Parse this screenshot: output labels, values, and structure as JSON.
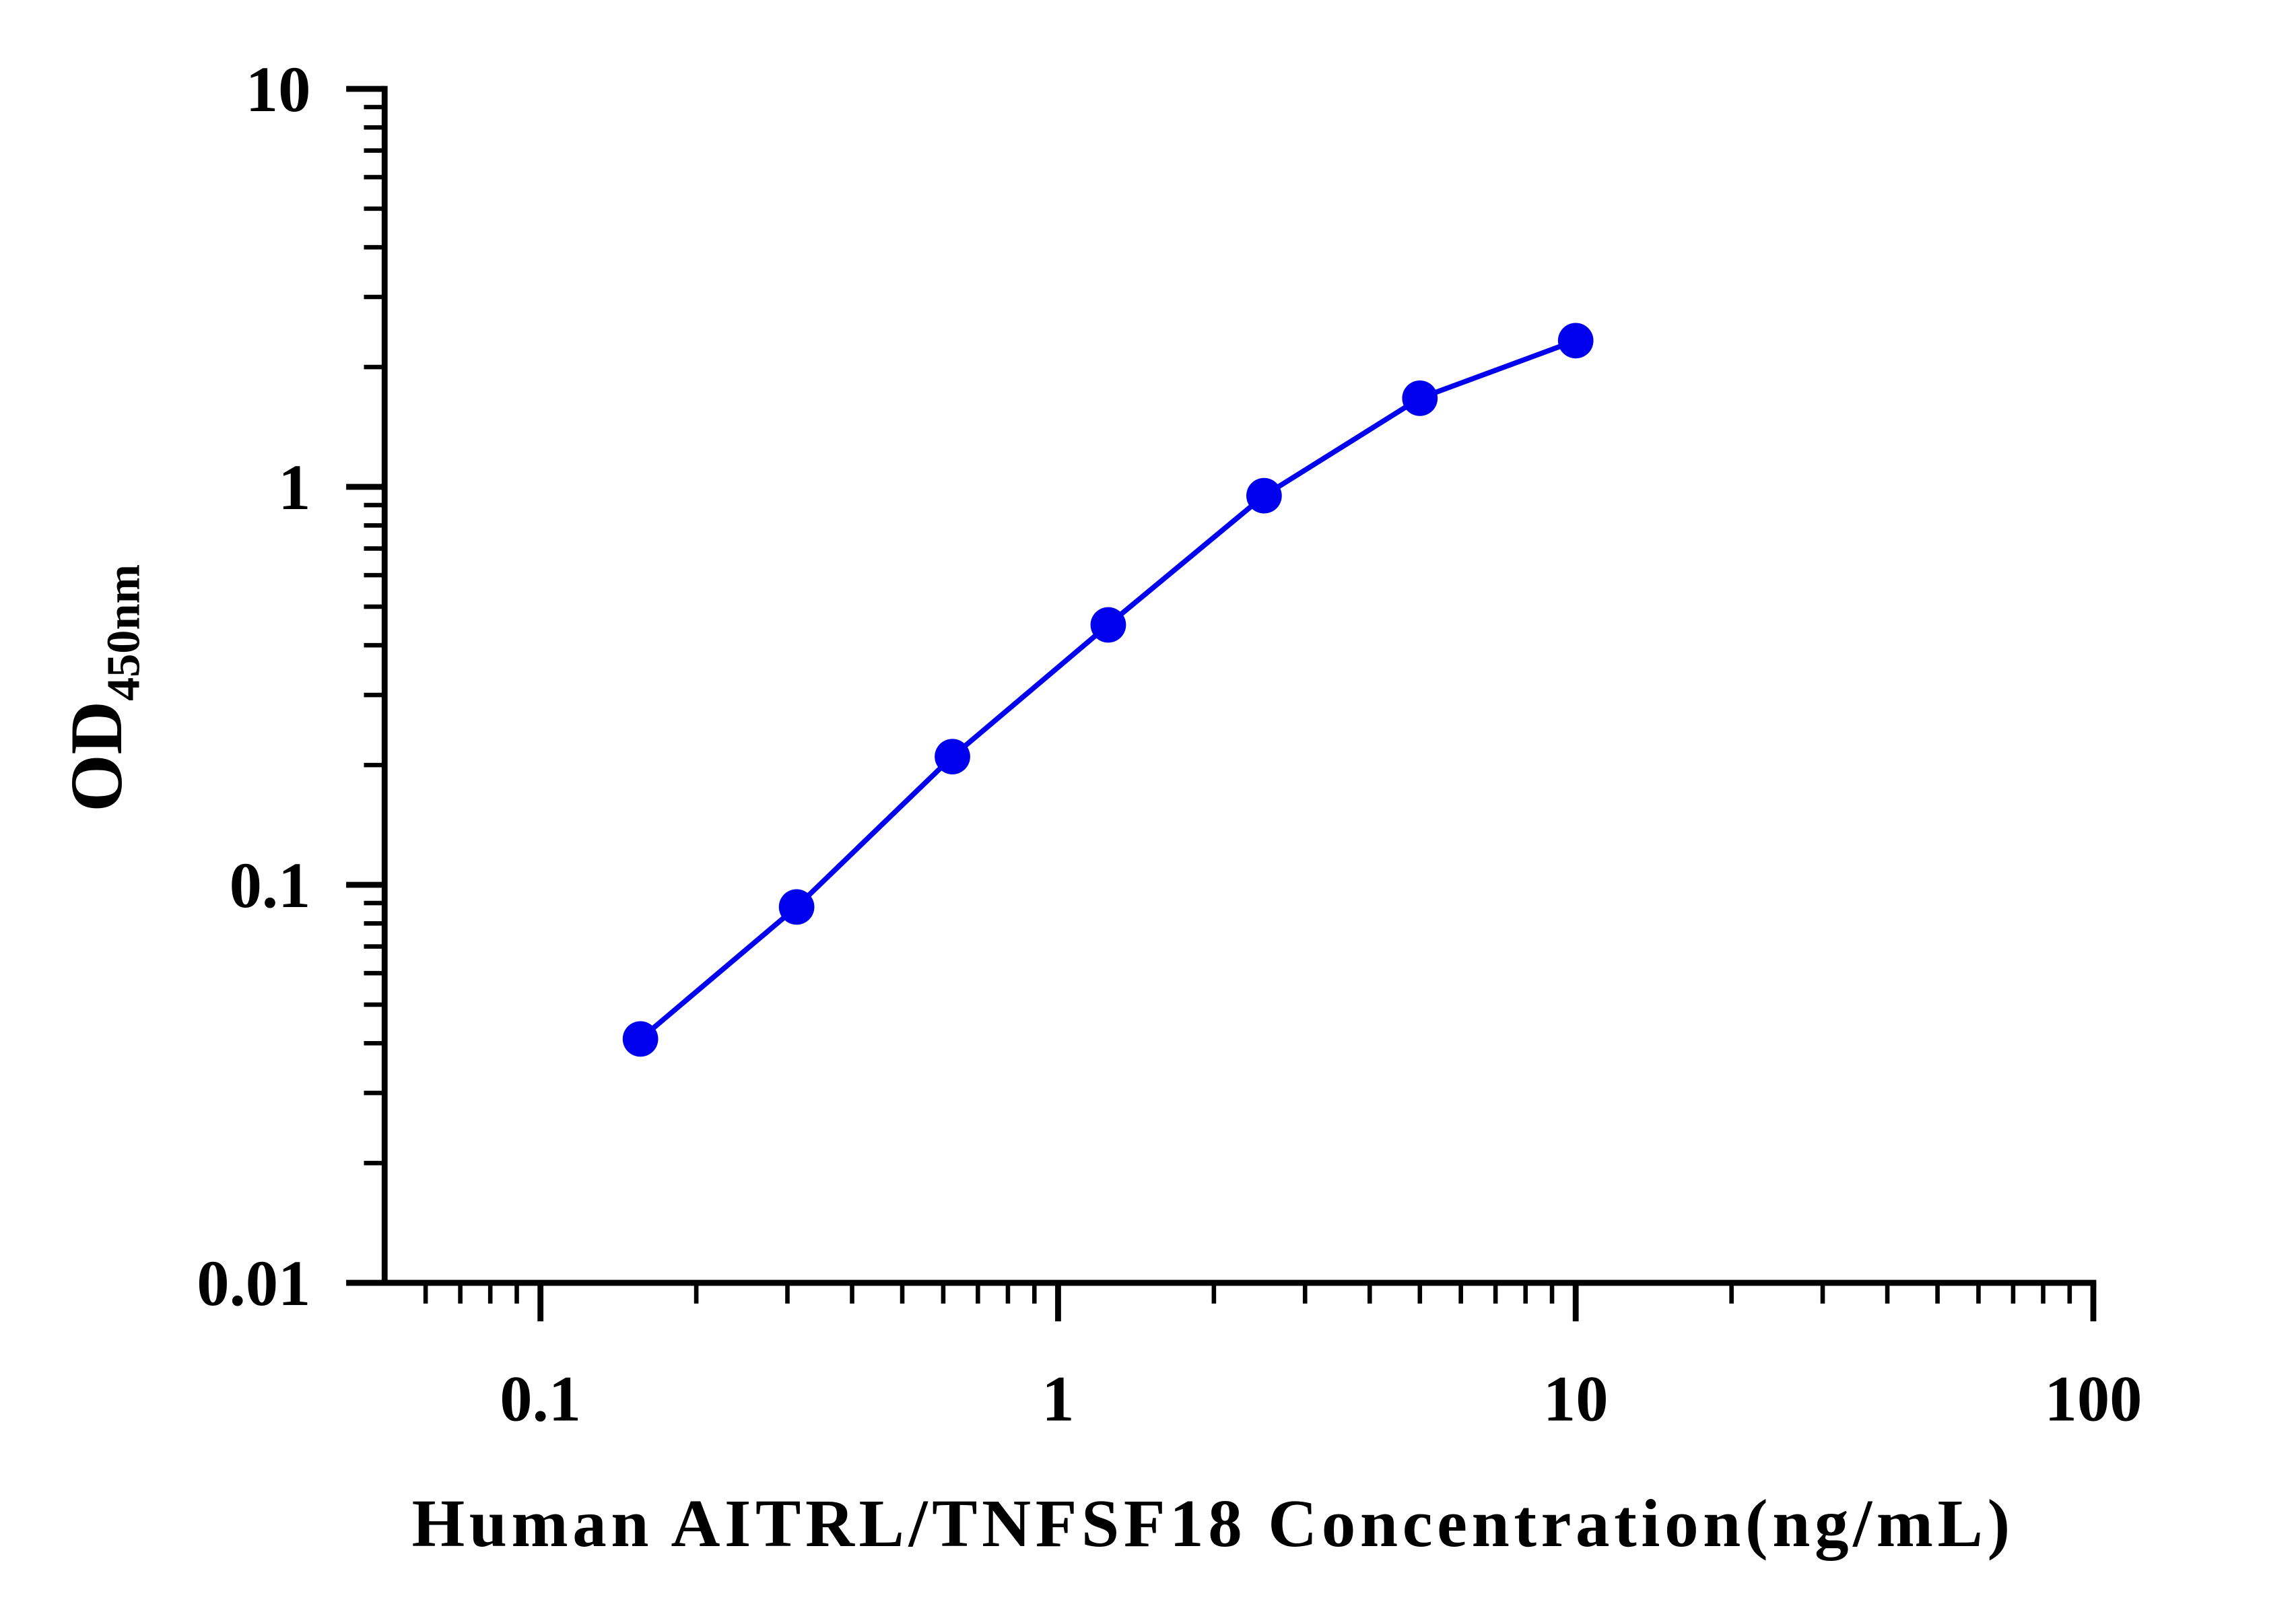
{
  "chart_data": {
    "type": "line",
    "xlabel": "Human AITRL/TNFSF18 Concentration(ng/mL)",
    "ylabel": "OD",
    "ylabel_subscript": "450nm",
    "x": [
      0.156,
      0.3125,
      0.625,
      1.25,
      2.5,
      5,
      10
    ],
    "series": [
      {
        "color": "#0000ee",
        "values": [
          0.041,
          0.088,
          0.21,
          0.45,
          0.95,
          1.67,
          2.33
        ]
      }
    ],
    "xscale": "log",
    "yscale": "log",
    "xlim": [
      0.05,
      100
    ],
    "ylim": [
      0.01,
      10
    ],
    "xticks": [
      0.1,
      1,
      10,
      100
    ],
    "yticks": [
      0.01,
      0.1,
      1,
      10
    ],
    "xminorticks": [
      0.06,
      0.07,
      0.08,
      0.09,
      0.2,
      0.3,
      0.4,
      0.5,
      0.6,
      0.7,
      0.8,
      0.9,
      2,
      3,
      4,
      5,
      6,
      7,
      8,
      9,
      20,
      30,
      40,
      50,
      60,
      70,
      80,
      90
    ],
    "yminorticks": [
      0.02,
      0.03,
      0.04,
      0.05,
      0.06,
      0.07,
      0.08,
      0.09,
      0.2,
      0.3,
      0.4,
      0.5,
      0.6,
      0.7,
      0.8,
      0.9,
      2,
      3,
      4,
      5,
      6,
      7,
      8,
      9
    ],
    "grid": false
  }
}
